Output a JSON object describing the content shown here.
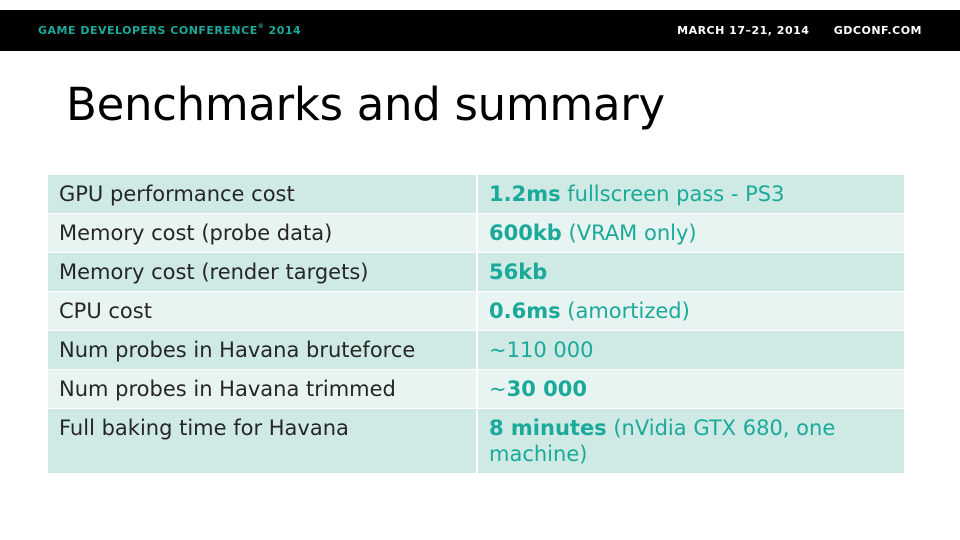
{
  "header": {
    "conference": "GAME DEVELOPERS CONFERENCE",
    "registered_mark": "®",
    "year": " 2014",
    "dates": "MARCH 17–21, 2014",
    "site": "GDCONF.COM"
  },
  "slide": {
    "title": "Benchmarks and summary"
  },
  "table": {
    "rows": [
      {
        "label": "GPU performance cost",
        "value_bold": "1.2ms",
        "value_rest": " fullscreen pass - PS3"
      },
      {
        "label": "Memory cost (probe data)",
        "value_bold": "600kb",
        "value_rest": " (VRAM only)"
      },
      {
        "label": "Memory cost (render targets)",
        "value_bold": "56kb",
        "value_rest": ""
      },
      {
        "label": "CPU cost",
        "value_bold": "0.6ms",
        "value_rest": " (amortized)"
      },
      {
        "label": "Num probes in Havana bruteforce",
        "value_prefix": "~110 000"
      },
      {
        "label": "Num probes in Havana trimmed",
        "value_prefix": "~",
        "value_bold": "30 000"
      },
      {
        "label": "Full baking time for Havana",
        "value_bold": "8 minutes",
        "value_rest": " (nVidia GTX 680, one machine)"
      }
    ]
  },
  "colors": {
    "accent": "#1ba99a",
    "row_dark": "#cfeae4",
    "row_light": "#e8f4f1",
    "bar": "#000000"
  }
}
